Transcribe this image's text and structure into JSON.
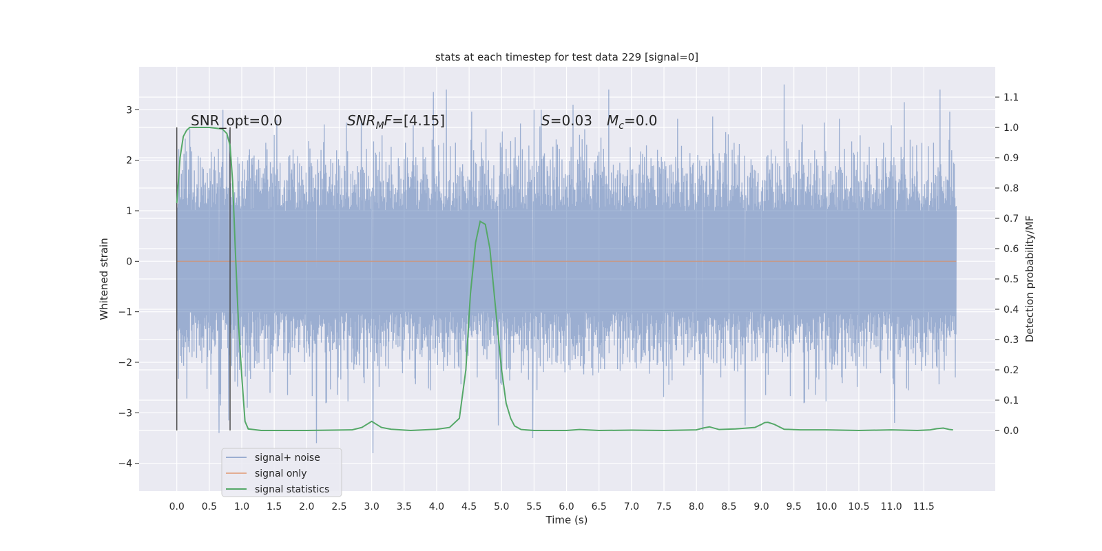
{
  "chart_data": {
    "type": "line",
    "title": "stats at each timestep for test data 229 [signal=0]",
    "xlabel": "Time (s)",
    "ylabel_left": "Whitened strain",
    "ylabel_right": "Detection probability/MF",
    "xlim": [
      -0.58,
      12.6
    ],
    "ylim_left": [
      -4.55,
      3.85
    ],
    "ylim_right": [
      -0.2,
      1.2
    ],
    "x_ticks": [
      0.0,
      0.5,
      1.0,
      1.5,
      2.0,
      2.5,
      3.0,
      3.5,
      4.0,
      4.5,
      5.0,
      5.5,
      6.0,
      6.5,
      7.0,
      7.5,
      8.0,
      8.5,
      9.0,
      9.5,
      10.0,
      10.5,
      11.0,
      11.5
    ],
    "x_tick_labels": [
      "0.0",
      "0.5",
      "1.0",
      "1.5",
      "2.0",
      "2.5",
      "3.0",
      "3.5",
      "4.0",
      "4.5",
      "5.0",
      "5.5",
      "6.0",
      "6.5",
      "7.0",
      "7.5",
      "8.0",
      "8.5",
      "9.0",
      "9.5",
      "10.0",
      "10.5",
      "11.0",
      "11.5"
    ],
    "y_left_ticks": [
      -4,
      -3,
      -2,
      -1,
      0,
      1,
      2,
      3
    ],
    "y_left_tick_labels": [
      "−4",
      "−3",
      "−2",
      "−1",
      "0",
      "1",
      "2",
      "3"
    ],
    "y_right_ticks": [
      0.0,
      0.1,
      0.2,
      0.3,
      0.4,
      0.5,
      0.6,
      0.7,
      0.8,
      0.9,
      1.0,
      1.1
    ],
    "y_right_tick_labels": [
      "0.0",
      "0.1",
      "0.2",
      "0.3",
      "0.4",
      "0.5",
      "0.6",
      "0.7",
      "0.8",
      "0.9",
      "1.0",
      "1.1"
    ],
    "grid": true,
    "background": "#eaeaf2",
    "annotations": [
      {
        "text": "SNR_opt=0.0"
      },
      {
        "text": "SNR_MF=[4.15]"
      },
      {
        "text": "S=0.03"
      },
      {
        "text": "M_c=0.0"
      }
    ],
    "vertical_markers": [
      0.0,
      0.82
    ],
    "legend_position": "lower-left",
    "series": [
      {
        "name": "signal+ noise",
        "axis": "left",
        "color": "#4c72b0",
        "description_of_values": "dense noisy whitened strain from 0.0 to 12.0 s, ranging roughly -3.8 to 3.5",
        "x_range": [
          0.0,
          12.0
        ],
        "peaks_high": [
          [
            0.65,
            3.25
          ],
          [
            3.95,
            3.35
          ],
          [
            4.15,
            3.4
          ],
          [
            6.1,
            3.1
          ],
          [
            6.65,
            3.4
          ],
          [
            9.35,
            3.5
          ],
          [
            11.2,
            3.15
          ],
          [
            11.75,
            3.4
          ]
        ],
        "peaks_low": [
          [
            0.65,
            -3.4
          ],
          [
            0.8,
            -3.15
          ],
          [
            2.15,
            -3.6
          ],
          [
            3.02,
            -3.8
          ],
          [
            4.95,
            -3.25
          ],
          [
            5.48,
            -3.5
          ],
          [
            8.1,
            -3.35
          ],
          [
            8.75,
            -3.25
          ],
          [
            11.05,
            -3.2
          ]
        ]
      },
      {
        "name": "signal only",
        "axis": "left",
        "color": "#dd8452",
        "x": [
          0.0,
          12.0
        ],
        "y": [
          0.0,
          0.0
        ]
      },
      {
        "name": "signal statistics",
        "axis": "right",
        "color": "#55a868",
        "x": [
          0.0,
          0.05,
          0.1,
          0.15,
          0.2,
          0.3,
          0.5,
          0.7,
          0.77,
          0.82,
          0.86,
          0.9,
          0.95,
          1.0,
          1.05,
          1.1,
          1.3,
          2.0,
          2.7,
          2.85,
          3.0,
          3.15,
          3.3,
          3.6,
          4.0,
          4.2,
          4.35,
          4.45,
          4.52,
          4.6,
          4.67,
          4.75,
          4.82,
          4.9,
          5.0,
          5.07,
          5.14,
          5.2,
          5.3,
          5.5,
          6.0,
          6.2,
          6.5,
          7.0,
          7.5,
          8.0,
          8.1,
          8.2,
          8.35,
          8.6,
          8.9,
          9.0,
          9.05,
          9.1,
          9.2,
          9.35,
          9.6,
          10.0,
          10.5,
          11.0,
          11.4,
          11.6,
          11.7,
          11.8,
          11.9,
          11.95
        ],
        "y": [
          0.75,
          0.9,
          0.97,
          0.99,
          1.0,
          1.0,
          1.0,
          0.995,
          0.98,
          0.94,
          0.82,
          0.6,
          0.35,
          0.18,
          0.03,
          0.005,
          0.0,
          0.0,
          0.002,
          0.01,
          0.03,
          0.01,
          0.004,
          0.0,
          0.004,
          0.01,
          0.04,
          0.2,
          0.45,
          0.62,
          0.69,
          0.68,
          0.6,
          0.42,
          0.2,
          0.09,
          0.04,
          0.015,
          0.003,
          0.0,
          0.0,
          0.003,
          0.0,
          0.001,
          0.0,
          0.002,
          0.008,
          0.012,
          0.003,
          0.005,
          0.01,
          0.02,
          0.026,
          0.027,
          0.02,
          0.004,
          0.002,
          0.002,
          0.0,
          0.002,
          0.0,
          0.002,
          0.006,
          0.008,
          0.003,
          0.002
        ]
      }
    ]
  }
}
